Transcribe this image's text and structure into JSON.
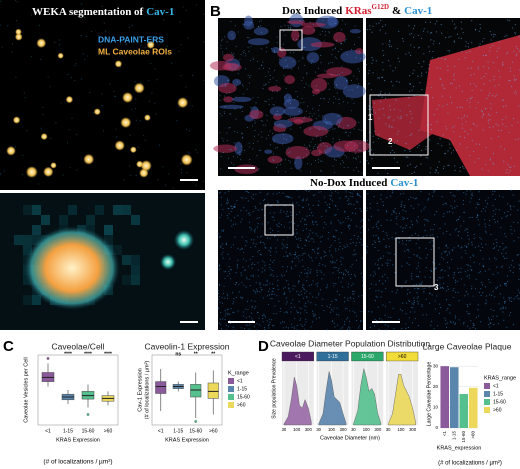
{
  "panel_a": {
    "label": "A",
    "title": "WEKA segmentation of",
    "title_highlight": "Cav-1",
    "legend": [
      "DNA-PAINT-ERS",
      "ML Caveolae ROIs"
    ]
  },
  "panel_b": {
    "label": "B",
    "title_dox": "Dox Induced",
    "title_kras": "KRas",
    "title_kras_sup": "G12D",
    "title_amp": "&",
    "title_cav": "Cav-1",
    "title_nodox": "No-Dox Induced",
    "title_nodox_cav": "Cav-1",
    "roi_labels": [
      "1",
      "2",
      "3"
    ]
  },
  "panel_c": {
    "label": "C",
    "x_label2": "(# of localizations / µm²)"
  },
  "panel_d": {
    "label": "D",
    "x_label2": "(# of localizations / µm²)"
  },
  "chart_data": [
    {
      "type": "box",
      "title": "Caveolae/Cell",
      "y_label": "Caveolae Vesicles per Cell",
      "x_label": "KRAS Expression",
      "categories": [
        "<1",
        "1-15",
        "15-60",
        ">60"
      ],
      "colors": [
        "#8a5a9a",
        "#5a86ad",
        "#55c08e",
        "#ecd85a"
      ],
      "ylim": [
        0,
        100
      ],
      "boxes": [
        {
          "whisker": [
            55,
            88
          ],
          "quartiles": [
            62,
            68,
            75
          ],
          "outliers": [
            95
          ]
        },
        {
          "whisker": [
            30,
            50
          ],
          "quartiles": [
            36,
            40,
            44
          ],
          "outliers": []
        },
        {
          "whisker": [
            25,
            58
          ],
          "quartiles": [
            37,
            42,
            48
          ],
          "outliers": [
            15
          ]
        },
        {
          "whisker": [
            28,
            48
          ],
          "quartiles": [
            34,
            38,
            42
          ],
          "outliers": []
        }
      ],
      "significance": [
        null,
        "****",
        "****",
        "****"
      ]
    },
    {
      "type": "box",
      "title": "Caveolin-1 Expression",
      "y_label": "Cav-1 Expression",
      "y_label2": "(# of localizations / µm²)",
      "x_label": "KRAS Expression",
      "legend_title": "K_range",
      "categories": [
        "<1",
        "1-15",
        "15-60",
        ">60"
      ],
      "colors": [
        "#8a5a9a",
        "#5a86ad",
        "#55c08e",
        "#ecd85a"
      ],
      "ylim": [
        0,
        100
      ],
      "boxes": [
        {
          "whisker": [
            20,
            80
          ],
          "quartiles": [
            45,
            55,
            62
          ],
          "outliers": []
        },
        {
          "whisker": [
            48,
            62
          ],
          "quartiles": [
            52,
            55,
            58
          ],
          "outliers": []
        },
        {
          "whisker": [
            10,
            75
          ],
          "quartiles": [
            40,
            50,
            58
          ],
          "outliers": [
            5
          ]
        },
        {
          "whisker": [
            15,
            78
          ],
          "quartiles": [
            38,
            48,
            60
          ],
          "outliers": []
        }
      ],
      "significance": [
        null,
        "ns",
        "**",
        "**"
      ]
    },
    {
      "type": "area",
      "title": "Caveolae Diameter Population Distribution",
      "y_label": "Size population Prevalence",
      "x_label": "Caveolae Diameter (nm)",
      "log_x": true,
      "xlim": [
        25,
        500
      ],
      "xticks": [
        30,
        100,
        300
      ],
      "ylim": [
        0,
        1.1
      ],
      "x": [
        30,
        45,
        60,
        80,
        100,
        130,
        170,
        220,
        300,
        400
      ],
      "series": [
        {
          "name": "<1",
          "color": "#9a6aa8",
          "header_color": "#4b1a5e",
          "values": [
            0.02,
            0.15,
            0.45,
            0.85,
            0.7,
            0.35,
            0.3,
            0.45,
            0.3,
            0.05
          ]
        },
        {
          "name": "1-15",
          "color": "#5a86ad",
          "header_color": "#2f6f9a",
          "values": [
            0.02,
            0.2,
            0.6,
            0.95,
            0.8,
            0.5,
            0.45,
            0.4,
            0.2,
            0.03
          ]
        },
        {
          "name": "15-60",
          "color": "#55c08e",
          "header_color": "#2aa86a",
          "values": [
            0.02,
            0.25,
            0.7,
            1.0,
            0.85,
            0.6,
            0.65,
            0.55,
            0.2,
            0.03
          ]
        },
        {
          "name": ">60",
          "color": "#ecd85a",
          "header_color": "#f2dc3a",
          "values": [
            0.02,
            0.2,
            0.55,
            0.9,
            0.9,
            0.7,
            0.6,
            0.5,
            0.3,
            0.05
          ]
        }
      ]
    },
    {
      "type": "bar",
      "title": "Large Caveolae Plaque",
      "y_label": "Large Caveolae Percentage",
      "x_label": "KRAS_expression",
      "legend_title": "KRAS_range",
      "categories": [
        "<1",
        "1-15",
        "15-60",
        ">60"
      ],
      "colors": [
        "#8a5a9a",
        "#5a86ad",
        "#55c08e",
        "#ecd85a"
      ],
      "values": [
        30,
        29.5,
        16.5,
        19.5
      ],
      "ylim": [
        0,
        33
      ],
      "yticks": [
        0,
        10,
        20,
        30
      ]
    }
  ]
}
